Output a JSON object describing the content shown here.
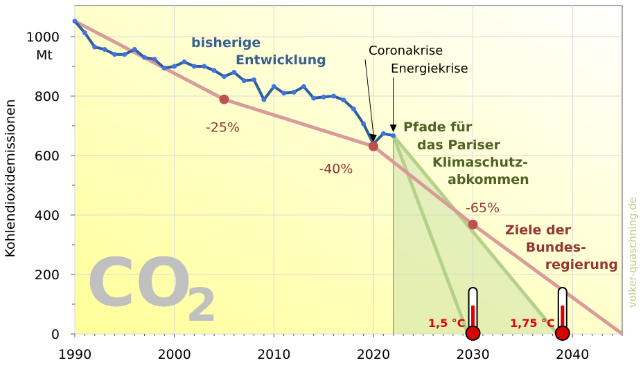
{
  "chart_data": {
    "type": "line",
    "ylabel": "Kohlendioxidemissionen",
    "yunit": "Mt",
    "xlim": [
      1990,
      2045
    ],
    "ylim": [
      0,
      1000
    ],
    "xticks": [
      1990,
      2000,
      2010,
      2020,
      2030,
      2040
    ],
    "yticks": [
      0,
      200,
      400,
      600,
      800,
      1000
    ],
    "grid": true,
    "big_label": {
      "main": "CO",
      "sub": "2"
    },
    "watermark": "volker-quaschning.de",
    "series": [
      {
        "name": "bisherige Entwicklung",
        "name_lines": [
          "bisherige",
          "Entwicklung"
        ],
        "color": "#2e5d9a",
        "x": [
          1990,
          1991,
          1992,
          1993,
          1994,
          1995,
          1996,
          1997,
          1998,
          1999,
          2000,
          2001,
          2002,
          2003,
          2004,
          2005,
          2006,
          2007,
          2008,
          2009,
          2010,
          2011,
          2012,
          2013,
          2014,
          2015,
          2016,
          2017,
          2018,
          2019,
          2020,
          2021,
          2022
        ],
        "y": [
          1052,
          1013,
          965,
          957,
          940,
          940,
          957,
          930,
          924,
          894,
          900,
          915,
          900,
          900,
          886,
          866,
          880,
          852,
          855,
          788,
          832,
          810,
          813,
          832,
          793,
          797,
          800,
          787,
          757,
          707,
          639,
          674,
          667
        ]
      },
      {
        "name": "Ziele der Bundesregierung",
        "name_lines": [
          "Ziele der",
          "Bundes-",
          "regierung"
        ],
        "color": "#d99a9a",
        "x": [
          1990,
          2005,
          2020,
          2030,
          2045
        ],
        "y": [
          1052,
          789,
          631,
          368,
          0
        ]
      }
    ],
    "targets": [
      {
        "x": 2005,
        "y": 789,
        "label": "-25%"
      },
      {
        "x": 2020,
        "y": 631,
        "label": "-40%"
      },
      {
        "x": 2030,
        "y": 368,
        "label": "-65%"
      }
    ],
    "events": [
      {
        "x": 2020,
        "label": "Coronakrise"
      },
      {
        "x": 2022,
        "label": "Energiekrise"
      }
    ],
    "paris_paths": {
      "label_lines": [
        "Pfade für",
        "das Pariser",
        "Klimaschutz-",
        "abkommen"
      ],
      "start": {
        "x": 2022,
        "y": 667
      },
      "paths": [
        {
          "end_x": 2029.5,
          "label": "1,5 °C",
          "thermometer_x": 2030
        },
        {
          "end_x": 2038.5,
          "label": "1,75 °C",
          "thermometer_x": 2039
        }
      ]
    },
    "colors": {
      "background_top": "#ffffff",
      "background_bottom": "#ffff99",
      "history_line": "#2e5d9a",
      "history_points": "#3f73e6",
      "target_line": "#d99a9a",
      "target_points": "#c0504d",
      "paris_fill": "#c5dba4",
      "paris_line": "#b4d18a",
      "paris_label": "#4f6228",
      "target_label": "#943634",
      "history_label": "#376092",
      "watermark": "#b8cf7d",
      "thermo_label": "#e00000"
    }
  }
}
